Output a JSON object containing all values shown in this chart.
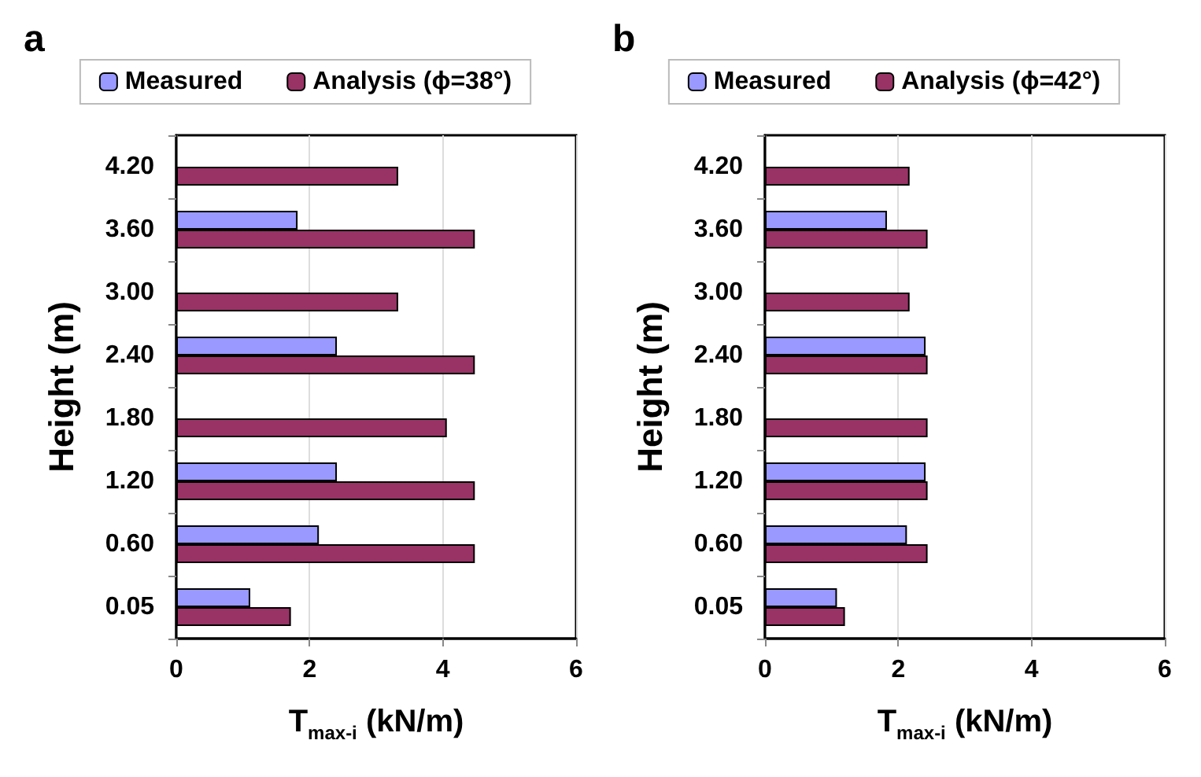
{
  "chart_data": [
    {
      "type": "bar",
      "orientation": "horizontal",
      "title": "a",
      "xlabel": "T$_{max-i}$ (kN/m)",
      "ylabel": "Height (m)",
      "categories": [
        "4.20",
        "3.60",
        "3.00",
        "2.40",
        "1.80",
        "1.20",
        "0.60",
        "0.05"
      ],
      "series": [
        {
          "name": "Measured",
          "color": "#9999ff",
          "values": [
            null,
            1.82,
            null,
            2.41,
            null,
            2.41,
            2.14,
            1.11
          ]
        },
        {
          "name": "Analysis (ϕ=38°)",
          "color": "#993366",
          "values": [
            3.33,
            4.48,
            3.33,
            4.48,
            4.06,
            4.48,
            4.48,
            1.72
          ]
        }
      ],
      "xlim": [
        0,
        6
      ],
      "xticks": [
        0,
        2,
        4,
        6
      ],
      "grid": "x",
      "legend": "top"
    },
    {
      "type": "bar",
      "orientation": "horizontal",
      "title": "b",
      "xlabel": "T$_{max-i}$ (kN/m)",
      "ylabel": "Height (m)",
      "categories": [
        "4.20",
        "3.60",
        "3.00",
        "2.40",
        "1.80",
        "1.20",
        "0.60",
        "0.05"
      ],
      "series": [
        {
          "name": "Measured",
          "color": "#9999ff",
          "values": [
            null,
            1.83,
            null,
            2.41,
            null,
            2.41,
            2.13,
            1.08
          ]
        },
        {
          "name": "Analysis (ϕ=42°)",
          "color": "#993366",
          "values": [
            2.17,
            2.44,
            2.17,
            2.44,
            2.44,
            2.44,
            2.44,
            1.2
          ]
        }
      ],
      "xlim": [
        0,
        6
      ],
      "xticks": [
        0,
        2,
        4,
        6
      ],
      "grid": "x",
      "legend": "top"
    }
  ]
}
